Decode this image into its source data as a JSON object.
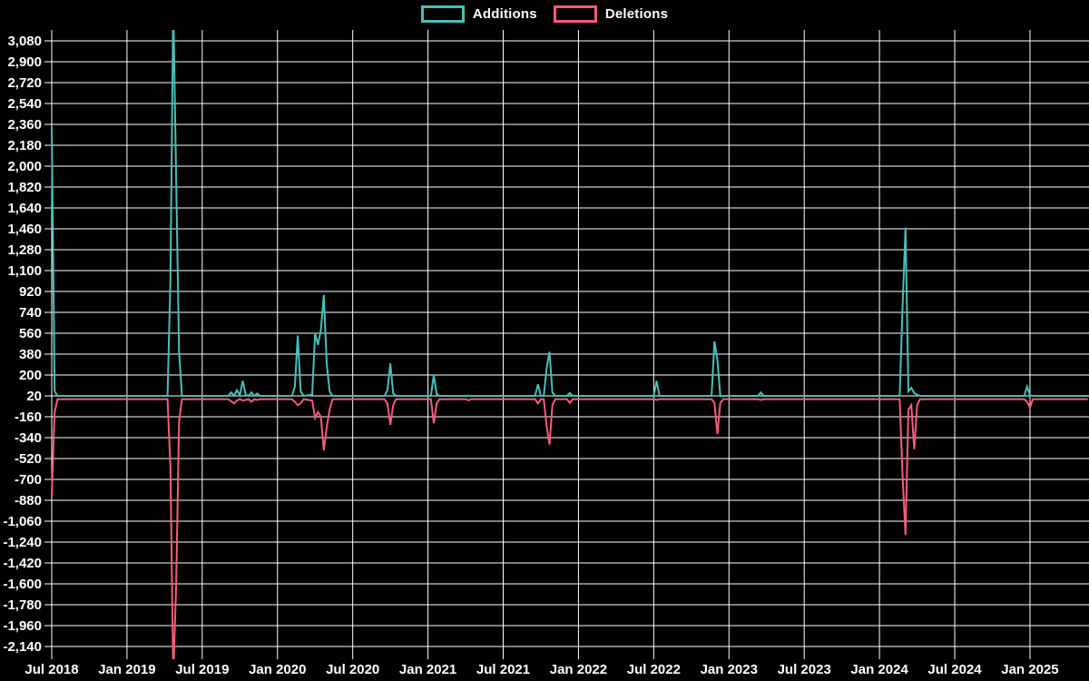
{
  "chart_data": {
    "type": "line",
    "description": "Weekly additions and deletions frequency chart, black background, teal additions line and pink deletions line with sparse large spikes",
    "legend": {
      "additions_label": "Additions",
      "deletions_label": "Deletions"
    },
    "colors": {
      "background": "#000000",
      "grid": "#ffffff",
      "text": "#ffffff",
      "additions": "#49beb8",
      "deletions": "#f65c7a"
    },
    "y_axis": {
      "min": -2140,
      "max": 3080,
      "tick_step": 180,
      "tick_labels": [
        "3,080",
        "2,900",
        "2,720",
        "2,540",
        "2,360",
        "2,180",
        "2,000",
        "1,820",
        "1,640",
        "1,460",
        "1,280",
        "1,100",
        "920",
        "740",
        "560",
        "380",
        "200",
        "20",
        "-160",
        "-340",
        "-520",
        "-700",
        "-880",
        "-1,060",
        "-1,240",
        "-1,420",
        "-1,600",
        "-1,780",
        "-1,960",
        "-2,140"
      ]
    },
    "x_axis": {
      "tick_labels": [
        "Jul 2018",
        "Jan 2019",
        "Jul 2019",
        "Jan 2020",
        "Jul 2020",
        "Jan 2021",
        "Jul 2021",
        "Jan 2022",
        "Jul 2022",
        "Jan 2023",
        "Jul 2023",
        "Jan 2024",
        "Jul 2024",
        "Jan 2025"
      ],
      "weeks_per_tick_interval": 26
    },
    "baseline": {
      "additions": 20,
      "deletions": -8
    },
    "points_columns": [
      "week_index_from_jul_2018",
      "additions",
      "deletions"
    ],
    "points": [
      [
        0,
        2340,
        -845
      ],
      [
        1,
        60,
        -120
      ],
      [
        2,
        20,
        -8
      ],
      [
        40,
        20,
        -8
      ],
      [
        41,
        1030,
        -590
      ],
      [
        42,
        3400,
        -2400
      ],
      [
        43,
        1900,
        -1620
      ],
      [
        44,
        400,
        -200
      ],
      [
        45,
        20,
        -8
      ],
      [
        61,
        20,
        -8
      ],
      [
        62,
        50,
        -25
      ],
      [
        63,
        20,
        -45
      ],
      [
        64,
        70,
        -20
      ],
      [
        65,
        25,
        -8
      ],
      [
        66,
        150,
        -20
      ],
      [
        67,
        30,
        -15
      ],
      [
        68,
        20,
        -8
      ],
      [
        69,
        50,
        -30
      ],
      [
        70,
        20,
        -8
      ],
      [
        71,
        40,
        -15
      ],
      [
        72,
        20,
        -8
      ],
      [
        83,
        20,
        -8
      ],
      [
        84,
        100,
        -30
      ],
      [
        85,
        540,
        -60
      ],
      [
        86,
        60,
        -45
      ],
      [
        87,
        20,
        -8
      ],
      [
        90,
        30,
        -20
      ],
      [
        91,
        560,
        -170
      ],
      [
        92,
        460,
        -120
      ],
      [
        93,
        590,
        -160
      ],
      [
        94,
        890,
        -450
      ],
      [
        95,
        300,
        -250
      ],
      [
        96,
        60,
        -100
      ],
      [
        97,
        20,
        -8
      ],
      [
        115,
        20,
        -8
      ],
      [
        116,
        70,
        -50
      ],
      [
        117,
        300,
        -230
      ],
      [
        118,
        40,
        -60
      ],
      [
        119,
        20,
        -8
      ],
      [
        131,
        20,
        -8
      ],
      [
        132,
        200,
        -215
      ],
      [
        133,
        35,
        -45
      ],
      [
        134,
        20,
        -8
      ],
      [
        143,
        20,
        -8
      ],
      [
        144,
        22,
        -18
      ],
      [
        145,
        20,
        -8
      ],
      [
        167,
        20,
        -8
      ],
      [
        168,
        120,
        -45
      ],
      [
        169,
        20,
        -8
      ],
      [
        170,
        20,
        -8
      ],
      [
        171,
        260,
        -245
      ],
      [
        172,
        400,
        -400
      ],
      [
        173,
        50,
        -60
      ],
      [
        174,
        20,
        -8
      ],
      [
        178,
        20,
        -8
      ],
      [
        179,
        45,
        -40
      ],
      [
        180,
        20,
        -8
      ],
      [
        208,
        20,
        -8
      ],
      [
        209,
        150,
        -15
      ],
      [
        210,
        20,
        -8
      ],
      [
        228,
        20,
        -8
      ],
      [
        229,
        490,
        -40
      ],
      [
        230,
        330,
        -310
      ],
      [
        231,
        20,
        -40
      ],
      [
        232,
        20,
        -8
      ],
      [
        244,
        20,
        -8
      ],
      [
        245,
        50,
        -15
      ],
      [
        246,
        20,
        -8
      ],
      [
        293,
        20,
        -8
      ],
      [
        294,
        800,
        -675
      ],
      [
        295,
        1470,
        -1180
      ],
      [
        296,
        60,
        -100
      ],
      [
        297,
        90,
        -60
      ],
      [
        298,
        45,
        -440
      ],
      [
        299,
        30,
        -60
      ],
      [
        300,
        20,
        -8
      ],
      [
        336,
        20,
        -8
      ],
      [
        337,
        100,
        -30
      ],
      [
        338,
        25,
        -80
      ],
      [
        339,
        20,
        -8
      ],
      [
        358,
        20,
        -8
      ]
    ]
  }
}
